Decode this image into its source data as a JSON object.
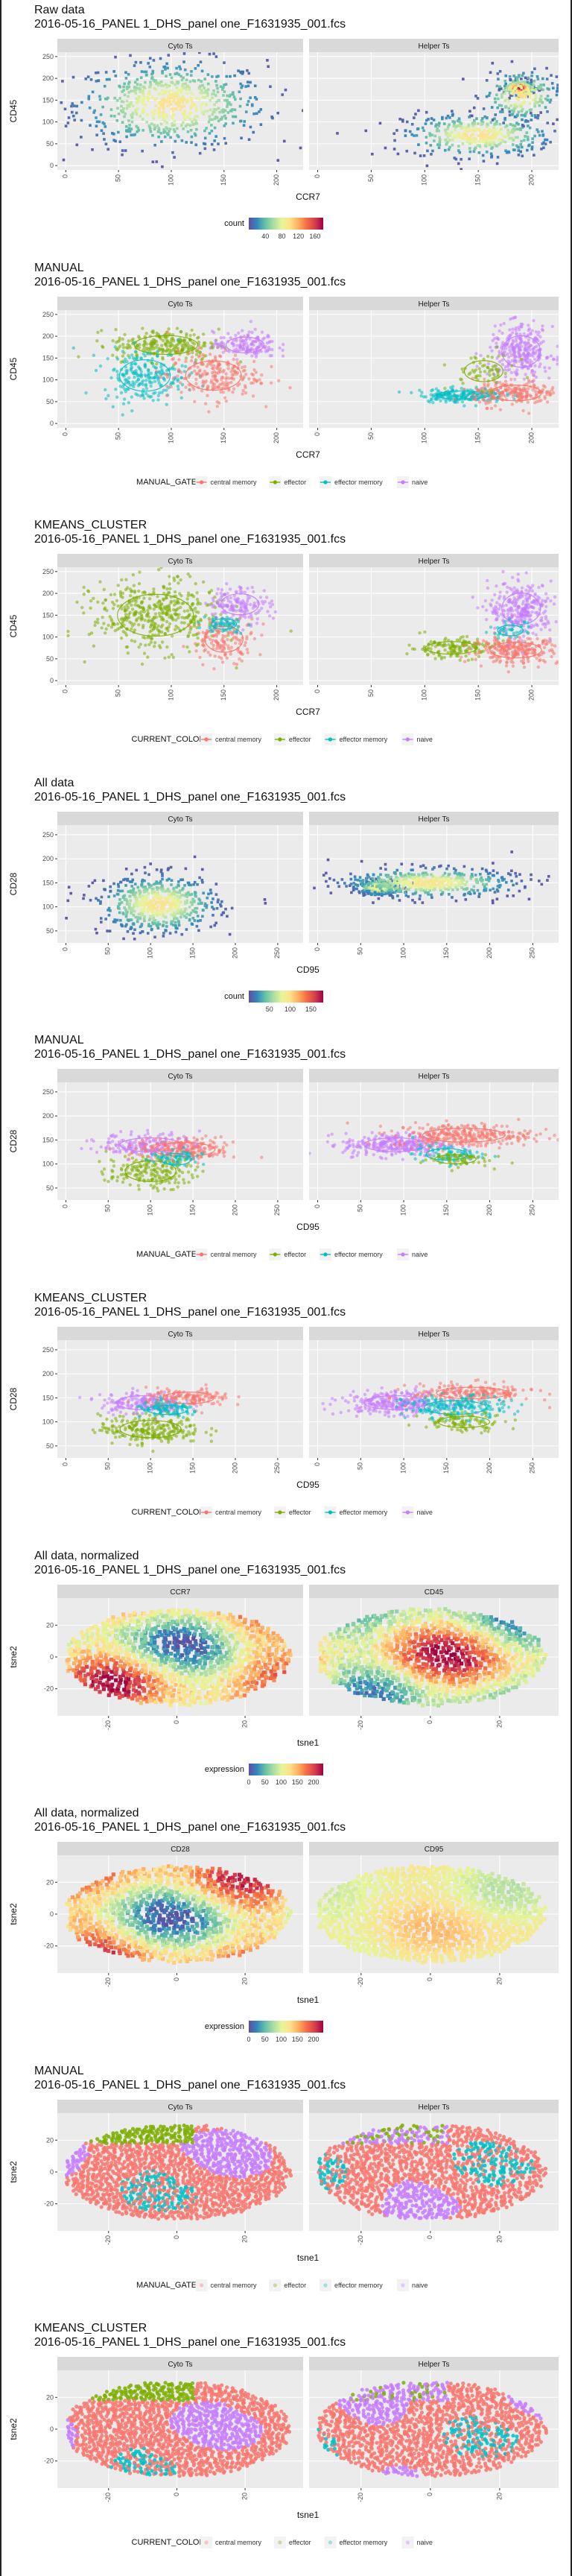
{
  "chart_data": [
    {
      "type": "scatter",
      "title": [
        "Raw data",
        "2016-05-16_PANEL 1_DHS_panel one_F1631935_001.fcs"
      ],
      "panels": [
        "Cyto Ts",
        "Helper Ts"
      ],
      "xlabel": "CCR7",
      "ylabel": "CD45",
      "xlim": [
        -8,
        225
      ],
      "xticks": [
        0,
        50,
        100,
        150,
        200
      ],
      "ylim": [
        -10,
        260
      ],
      "yticks": [
        0,
        50,
        100,
        150,
        200,
        250
      ],
      "mode": "density",
      "legend": {
        "title": "count",
        "type": "colorbar",
        "ticks": [
          40,
          80,
          120,
          160
        ],
        "range": [
          0,
          180
        ]
      },
      "clusters": [
        [
          {
            "x": 100,
            "y": 140,
            "sx": 45,
            "sy": 50,
            "n": 700
          }
        ],
        [
          {
            "x": 150,
            "y": 70,
            "sx": 35,
            "sy": 25,
            "n": 400
          },
          {
            "x": 188,
            "y": 178,
            "sx": 7,
            "sy": 8,
            "n": 250
          },
          {
            "x": 190,
            "y": 160,
            "sx": 18,
            "sy": 30,
            "n": 200
          }
        ]
      ]
    },
    {
      "type": "scatter",
      "title": [
        "MANUAL",
        "2016-05-16_PANEL 1_DHS_panel one_F1631935_001.fcs"
      ],
      "panels": [
        "Cyto Ts",
        "Helper Ts"
      ],
      "xlabel": "CCR7",
      "ylabel": "CD45",
      "xlim": [
        -8,
        225
      ],
      "xticks": [
        0,
        50,
        100,
        150,
        200
      ],
      "ylim": [
        -10,
        260
      ],
      "yticks": [
        0,
        50,
        100,
        150,
        200,
        250
      ],
      "mode": "groups",
      "legend": {
        "title": "MANUAL_GATE",
        "type": "categories",
        "items": [
          "central memory",
          "effector",
          "effector memory",
          "naive"
        ]
      },
      "clusters": [
        [
          {
            "g": 1,
            "x": 95,
            "y": 180,
            "sx": 25,
            "sy": 18,
            "n": 250
          },
          {
            "g": 2,
            "x": 75,
            "y": 110,
            "sx": 20,
            "sy": 30,
            "n": 230
          },
          {
            "g": 0,
            "x": 140,
            "y": 110,
            "sx": 22,
            "sy": 28,
            "n": 230
          },
          {
            "g": 3,
            "x": 170,
            "y": 180,
            "sx": 15,
            "sy": 15,
            "n": 150
          }
        ],
        [
          {
            "g": 2,
            "x": 135,
            "y": 65,
            "sx": 20,
            "sy": 8,
            "n": 200
          },
          {
            "g": 0,
            "x": 185,
            "y": 70,
            "sx": 20,
            "sy": 15,
            "n": 200
          },
          {
            "g": 3,
            "x": 190,
            "y": 165,
            "sx": 15,
            "sy": 30,
            "n": 300
          },
          {
            "g": 1,
            "x": 155,
            "y": 120,
            "sx": 15,
            "sy": 20,
            "n": 60
          }
        ]
      ]
    },
    {
      "type": "scatter",
      "title": [
        "KMEANS_CLUSTER",
        "2016-05-16_PANEL 1_DHS_panel one_F1631935_001.fcs"
      ],
      "panels": [
        "Cyto Ts",
        "Helper Ts"
      ],
      "xlabel": "CCR7",
      "ylabel": "CD45",
      "xlim": [
        -8,
        225
      ],
      "xticks": [
        0,
        50,
        100,
        150,
        200
      ],
      "ylim": [
        -10,
        260
      ],
      "yticks": [
        0,
        50,
        100,
        150,
        200,
        250
      ],
      "mode": "groups",
      "legend": {
        "title": "CURRENT_COLOR",
        "type": "categories",
        "items": [
          "central memory",
          "effector",
          "effector memory",
          "naive"
        ]
      },
      "clusters": [
        [
          {
            "g": 1,
            "x": 85,
            "y": 150,
            "sx": 30,
            "sy": 40,
            "n": 450
          },
          {
            "g": 0,
            "x": 150,
            "y": 95,
            "sx": 15,
            "sy": 25,
            "n": 150
          },
          {
            "g": 3,
            "x": 165,
            "y": 175,
            "sx": 15,
            "sy": 20,
            "n": 150
          },
          {
            "g": 2,
            "x": 150,
            "y": 130,
            "sx": 10,
            "sy": 10,
            "n": 60
          }
        ],
        [
          {
            "g": 1,
            "x": 125,
            "y": 75,
            "sx": 20,
            "sy": 12,
            "n": 150
          },
          {
            "g": 0,
            "x": 185,
            "y": 70,
            "sx": 20,
            "sy": 15,
            "n": 250
          },
          {
            "g": 3,
            "x": 190,
            "y": 165,
            "sx": 15,
            "sy": 30,
            "n": 300
          },
          {
            "g": 2,
            "x": 180,
            "y": 115,
            "sx": 10,
            "sy": 10,
            "n": 40
          }
        ]
      ]
    },
    {
      "type": "scatter",
      "title": [
        "All data",
        "2016-05-16_PANEL 1_DHS_panel one_F1631935_001.fcs"
      ],
      "panels": [
        "Cyto Ts",
        "Helper Ts"
      ],
      "xlabel": "CD95",
      "ylabel": "CD28",
      "xlim": [
        -10,
        280
      ],
      "xticks": [
        0,
        50,
        100,
        150,
        200,
        250
      ],
      "ylim": [
        25,
        270
      ],
      "yticks": [
        50,
        100,
        150,
        200,
        250
      ],
      "mode": "density",
      "legend": {
        "title": "count",
        "type": "colorbar",
        "ticks": [
          50,
          100,
          150
        ],
        "range": [
          0,
          180
        ]
      },
      "clusters": [
        [
          {
            "x": 110,
            "y": 105,
            "sx": 35,
            "sy": 30,
            "n": 600
          }
        ],
        [
          {
            "x": 70,
            "y": 140,
            "sx": 12,
            "sy": 8,
            "n": 250
          },
          {
            "x": 130,
            "y": 150,
            "sx": 50,
            "sy": 15,
            "n": 500
          }
        ]
      ]
    },
    {
      "type": "scatter",
      "title": [
        "MANUAL",
        "2016-05-16_PANEL 1_DHS_panel one_F1631935_001.fcs"
      ],
      "panels": [
        "Cyto Ts",
        "Helper Ts"
      ],
      "xlabel": "CD95",
      "ylabel": "CD28",
      "xlim": [
        -10,
        280
      ],
      "xticks": [
        0,
        50,
        100,
        150,
        200,
        250
      ],
      "ylim": [
        25,
        270
      ],
      "yticks": [
        50,
        100,
        150,
        200,
        250
      ],
      "mode": "groups",
      "legend": {
        "title": "MANUAL_GATE",
        "type": "categories",
        "items": [
          "central memory",
          "effector",
          "effector memory",
          "naive"
        ]
      },
      "clusters": [
        [
          {
            "g": 1,
            "x": 100,
            "y": 85,
            "sx": 25,
            "sy": 18,
            "n": 200
          },
          {
            "g": 3,
            "x": 100,
            "y": 140,
            "sx": 30,
            "sy": 12,
            "n": 200
          },
          {
            "g": 0,
            "x": 140,
            "y": 130,
            "sx": 30,
            "sy": 12,
            "n": 200
          },
          {
            "g": 2,
            "x": 130,
            "y": 110,
            "sx": 15,
            "sy": 10,
            "n": 60
          }
        ],
        [
          {
            "g": 3,
            "x": 90,
            "y": 140,
            "sx": 30,
            "sy": 12,
            "n": 300
          },
          {
            "g": 0,
            "x": 170,
            "y": 160,
            "sx": 40,
            "sy": 12,
            "n": 300
          },
          {
            "g": 2,
            "x": 150,
            "y": 120,
            "sx": 20,
            "sy": 10,
            "n": 80
          },
          {
            "g": 1,
            "x": 160,
            "y": 110,
            "sx": 20,
            "sy": 8,
            "n": 60
          }
        ]
      ]
    },
    {
      "type": "scatter",
      "title": [
        "KMEANS_CLUSTER",
        "2016-05-16_PANEL 1_DHS_panel one_F1631935_001.fcs"
      ],
      "panels": [
        "Cyto Ts",
        "Helper Ts"
      ],
      "xlabel": "CD95",
      "ylabel": "CD28",
      "xlim": [
        -10,
        280
      ],
      "xticks": [
        0,
        50,
        100,
        150,
        200,
        250
      ],
      "ylim": [
        25,
        270
      ],
      "yticks": [
        50,
        100,
        150,
        200,
        250
      ],
      "mode": "groups",
      "legend": {
        "title": "CURRENT_COLOR",
        "type": "categories",
        "items": [
          "central memory",
          "effector",
          "effector memory",
          "naive"
        ]
      },
      "clusters": [
        [
          {
            "g": 1,
            "x": 100,
            "y": 85,
            "sx": 30,
            "sy": 15,
            "n": 250
          },
          {
            "g": 3,
            "x": 90,
            "y": 140,
            "sx": 25,
            "sy": 12,
            "n": 180
          },
          {
            "g": 0,
            "x": 145,
            "y": 150,
            "sx": 25,
            "sy": 10,
            "n": 150
          },
          {
            "g": 2,
            "x": 120,
            "y": 125,
            "sx": 20,
            "sy": 8,
            "n": 100
          }
        ],
        [
          {
            "g": 3,
            "x": 90,
            "y": 140,
            "sx": 30,
            "sy": 12,
            "n": 300
          },
          {
            "g": 0,
            "x": 180,
            "y": 160,
            "sx": 35,
            "sy": 10,
            "n": 200
          },
          {
            "g": 2,
            "x": 160,
            "y": 130,
            "sx": 30,
            "sy": 12,
            "n": 200
          },
          {
            "g": 1,
            "x": 170,
            "y": 100,
            "sx": 25,
            "sy": 10,
            "n": 100
          }
        ]
      ]
    },
    {
      "type": "scatter",
      "title": [
        "All data, normalized",
        "2016-05-16_PANEL 1_DHS_panel one_F1631935_001.fcs"
      ],
      "panels": [
        "CCR7",
        "CD45"
      ],
      "xlabel": "tsne1",
      "ylabel": "tsne2",
      "xlim": [
        -35,
        37
      ],
      "xticks": [
        -20,
        0,
        20
      ],
      "ylim": [
        -37,
        37
      ],
      "yticks": [
        -20,
        0,
        20
      ],
      "mode": "tsne-expression",
      "legend": {
        "title": "expression",
        "type": "colorbar",
        "ticks": [
          0,
          50,
          100,
          150,
          200
        ],
        "range": [
          0,
          230
        ]
      }
    },
    {
      "type": "scatter",
      "title": [
        "All data, normalized",
        "2016-05-16_PANEL 1_DHS_panel one_F1631935_001.fcs"
      ],
      "panels": [
        "CD28",
        "CD95"
      ],
      "xlabel": "tsne1",
      "ylabel": "tsne2",
      "xlim": [
        -35,
        37
      ],
      "xticks": [
        -20,
        0,
        20
      ],
      "ylim": [
        -37,
        37
      ],
      "yticks": [
        -20,
        0,
        20
      ],
      "mode": "tsne-expression",
      "legend": {
        "title": "expression",
        "type": "colorbar",
        "ticks": [
          0,
          50,
          100,
          150,
          200
        ],
        "range": [
          0,
          230
        ]
      }
    },
    {
      "type": "scatter",
      "title": [
        "MANUAL",
        "2016-05-16_PANEL 1_DHS_panel one_F1631935_001.fcs"
      ],
      "panels": [
        "Cyto Ts",
        "Helper Ts"
      ],
      "xlabel": "tsne1",
      "ylabel": "tsne2",
      "xlim": [
        -35,
        37
      ],
      "xticks": [
        -20,
        0,
        20
      ],
      "ylim": [
        -37,
        37
      ],
      "yticks": [
        -20,
        0,
        20
      ],
      "mode": "tsne-groups",
      "legend": {
        "title": "MANUAL_GATE",
        "type": "categories-faint",
        "items": [
          "central memory",
          "effector",
          "effector memory",
          "naive"
        ]
      }
    },
    {
      "type": "scatter",
      "title": [
        "KMEANS_CLUSTER",
        "2016-05-16_PANEL 1_DHS_panel one_F1631935_001.fcs"
      ],
      "panels": [
        "Cyto Ts",
        "Helper Ts"
      ],
      "xlabel": "tsne1",
      "ylabel": "tsne2",
      "xlim": [
        -35,
        37
      ],
      "xticks": [
        -20,
        0,
        20
      ],
      "ylim": [
        -37,
        37
      ],
      "yticks": [
        -20,
        0,
        20
      ],
      "mode": "tsne-groups",
      "legend": {
        "title": "CURRENT_COLOR",
        "type": "categories-faint",
        "items": [
          "central memory",
          "effector",
          "effector memory",
          "naive"
        ]
      }
    }
  ],
  "group_colors": [
    "#F8766D",
    "#7CAE00",
    "#00BFC4",
    "#C77CFF"
  ],
  "density_colors": [
    "#5E4FA2",
    "#3288BD",
    "#66C2A5",
    "#ABDDA4",
    "#E6F598",
    "#FEE08B",
    "#FDAE61",
    "#F46D43",
    "#D53E4F",
    "#9E0142"
  ]
}
